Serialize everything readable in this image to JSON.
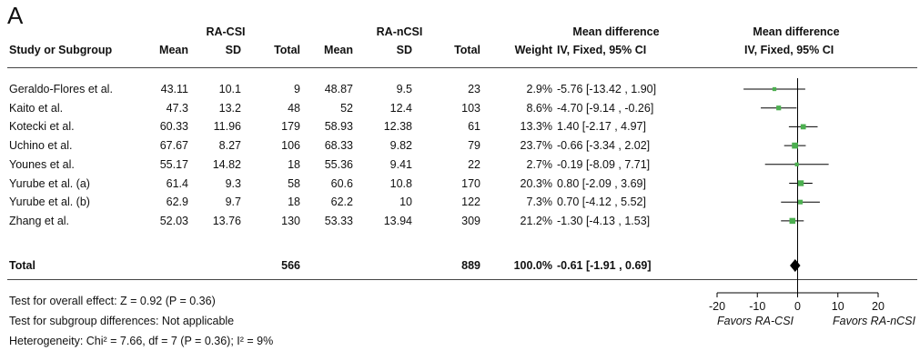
{
  "panel_label": "A",
  "headers": {
    "group1": "RA-CSI",
    "group2": "RA-nCSI",
    "study": "Study or Subgroup",
    "mean": "Mean",
    "sd": "SD",
    "total": "Total",
    "weight": "Weight",
    "md_title": "Mean difference",
    "md_method": "IV, Fixed, 95% CI"
  },
  "studies": [
    {
      "name": "Geraldo-Flores et al.",
      "mean1": "43.11",
      "sd1": "10.1",
      "n1": "9",
      "mean2": "48.87",
      "sd2": "9.5",
      "n2": "23",
      "weight": "2.9%",
      "ci_text": "-5.76 [-13.42 , 1.90]"
    },
    {
      "name": "Kaito et al.",
      "mean1": "47.3",
      "sd1": "13.2",
      "n1": "48",
      "mean2": "52",
      "sd2": "12.4",
      "n2": "103",
      "weight": "8.6%",
      "ci_text": "-4.70 [-9.14 , -0.26]"
    },
    {
      "name": "Kotecki et al.",
      "mean1": "60.33",
      "sd1": "11.96",
      "n1": "179",
      "mean2": "58.93",
      "sd2": "12.38",
      "n2": "61",
      "weight": "13.3%",
      "ci_text": "1.40 [-2.17 , 4.97]"
    },
    {
      "name": "Uchino et al.",
      "mean1": "67.67",
      "sd1": "8.27",
      "n1": "106",
      "mean2": "68.33",
      "sd2": "9.82",
      "n2": "79",
      "weight": "23.7%",
      "ci_text": "-0.66 [-3.34 , 2.02]"
    },
    {
      "name": "Younes et al.",
      "mean1": "55.17",
      "sd1": "14.82",
      "n1": "18",
      "mean2": "55.36",
      "sd2": "9.41",
      "n2": "22",
      "weight": "2.7%",
      "ci_text": "-0.19 [-8.09 , 7.71]"
    },
    {
      "name": "Yurube et al. (a)",
      "mean1": "61.4",
      "sd1": "9.3",
      "n1": "58",
      "mean2": "60.6",
      "sd2": "10.8",
      "n2": "170",
      "weight": "20.3%",
      "ci_text": "0.80 [-2.09 , 3.69]"
    },
    {
      "name": "Yurube et al. (b)",
      "mean1": "62.9",
      "sd1": "9.7",
      "n1": "18",
      "mean2": "62.2",
      "sd2": "10",
      "n2": "122",
      "weight": "7.3%",
      "ci_text": "0.70 [-4.12 , 5.52]"
    },
    {
      "name": "Zhang et al.",
      "mean1": "52.03",
      "sd1": "13.76",
      "n1": "130",
      "mean2": "53.33",
      "sd2": "13.94",
      "n2": "309",
      "weight": "21.2%",
      "ci_text": "-1.30 [-4.13 , 1.53]"
    }
  ],
  "total": {
    "label": "Total",
    "n1": "566",
    "n2": "889",
    "weight": "100.0%",
    "ci_text": "-0.61 [-1.91 , 0.69]"
  },
  "footer": {
    "overall": "Test for overall effect: Z = 0.92 (P = 0.36)",
    "subgroup": "Test for subgroup differences: Not applicable",
    "heterogeneity": "Heterogeneity: Chi² = 7.66, df = 7 (P = 0.36); I² = 9%"
  },
  "axis": {
    "favors_left": "Favors RA-CSI",
    "favors_right": "Favors RA-nCSI"
  },
  "colors": {
    "marker": "#4caf50",
    "diamond": "#000000",
    "line": "#000000"
  },
  "chart_data": {
    "type": "scatter",
    "title": "",
    "xlabel": "",
    "ylabel": "",
    "xlim": [
      -20,
      20
    ],
    "xticks": [
      -20,
      -10,
      0,
      10,
      20
    ],
    "points": [
      {
        "study": "Geraldo-Flores et al.",
        "md": -5.76,
        "lo": -13.42,
        "hi": 1.9,
        "weight": 2.9
      },
      {
        "study": "Kaito et al.",
        "md": -4.7,
        "lo": -9.14,
        "hi": -0.26,
        "weight": 8.6
      },
      {
        "study": "Kotecki et al.",
        "md": 1.4,
        "lo": -2.17,
        "hi": 4.97,
        "weight": 13.3
      },
      {
        "study": "Uchino et al.",
        "md": -0.66,
        "lo": -3.34,
        "hi": 2.02,
        "weight": 23.7
      },
      {
        "study": "Younes et al.",
        "md": -0.19,
        "lo": -8.09,
        "hi": 7.71,
        "weight": 2.7
      },
      {
        "study": "Yurube et al. (a)",
        "md": 0.8,
        "lo": -2.09,
        "hi": 3.69,
        "weight": 20.3
      },
      {
        "study": "Yurube et al. (b)",
        "md": 0.7,
        "lo": -4.12,
        "hi": 5.52,
        "weight": 7.3
      },
      {
        "study": "Zhang et al.",
        "md": -1.3,
        "lo": -4.13,
        "hi": 1.53,
        "weight": 21.2
      }
    ],
    "pooled": {
      "md": -0.61,
      "lo": -1.91,
      "hi": 0.69
    }
  }
}
